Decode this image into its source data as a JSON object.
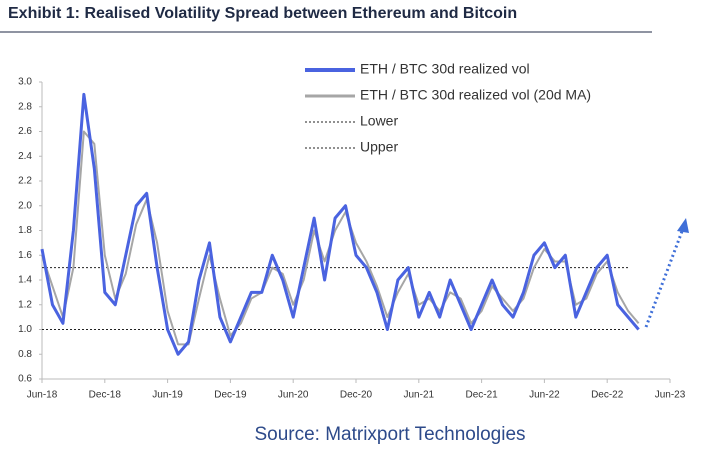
{
  "chart_data": {
    "type": "line",
    "title": "Exhibit 1: Realised Volatility Spread between Ethereum and Bitcoin",
    "source": "Source: Matrixport Technologies",
    "x": [
      "2018-06",
      "2018-07",
      "2018-08",
      "2018-09",
      "2018-10",
      "2018-11",
      "2018-12",
      "2019-01",
      "2019-02",
      "2019-03",
      "2019-04",
      "2019-05",
      "2019-06",
      "2019-07",
      "2019-08",
      "2019-09",
      "2019-10",
      "2019-11",
      "2019-12",
      "2020-01",
      "2020-02",
      "2020-03",
      "2020-04",
      "2020-05",
      "2020-06",
      "2020-07",
      "2020-08",
      "2020-09",
      "2020-10",
      "2020-11",
      "2020-12",
      "2021-01",
      "2021-02",
      "2021-03",
      "2021-04",
      "2021-05",
      "2021-06",
      "2021-07",
      "2021-08",
      "2021-09",
      "2021-10",
      "2021-11",
      "2021-12",
      "2022-01",
      "2022-02",
      "2022-03",
      "2022-04",
      "2022-05",
      "2022-06",
      "2022-07",
      "2022-08",
      "2022-09",
      "2022-10",
      "2022-11",
      "2022-12",
      "2023-01",
      "2023-02",
      "2023-03"
    ],
    "series": [
      {
        "name": "ETH / BTC 30d realized vol",
        "color": "#4a63e0",
        "width": 3,
        "values": [
          1.65,
          1.2,
          1.05,
          1.8,
          2.9,
          2.3,
          1.3,
          1.2,
          1.6,
          2.0,
          2.1,
          1.5,
          1.0,
          0.8,
          0.9,
          1.4,
          1.7,
          1.1,
          0.9,
          1.1,
          1.3,
          1.3,
          1.6,
          1.4,
          1.1,
          1.5,
          1.9,
          1.4,
          1.9,
          2.0,
          1.6,
          1.5,
          1.3,
          1.0,
          1.4,
          1.5,
          1.1,
          1.3,
          1.1,
          1.4,
          1.2,
          1.0,
          1.2,
          1.4,
          1.2,
          1.1,
          1.3,
          1.6,
          1.7,
          1.5,
          1.6,
          1.1,
          1.3,
          1.5,
          1.6,
          1.2,
          1.1,
          1.0
        ]
      },
      {
        "name": "ETH / BTC 30d realized vol (20d MA)",
        "color": "#a6a6a6",
        "width": 2,
        "values": [
          1.6,
          1.35,
          1.1,
          1.5,
          2.6,
          2.5,
          1.6,
          1.25,
          1.45,
          1.85,
          2.05,
          1.7,
          1.15,
          0.88,
          0.88,
          1.25,
          1.6,
          1.25,
          0.95,
          1.05,
          1.25,
          1.3,
          1.5,
          1.45,
          1.2,
          1.4,
          1.8,
          1.55,
          1.8,
          1.95,
          1.7,
          1.55,
          1.35,
          1.1,
          1.3,
          1.45,
          1.2,
          1.25,
          1.15,
          1.3,
          1.25,
          1.05,
          1.15,
          1.35,
          1.25,
          1.15,
          1.25,
          1.5,
          1.65,
          1.55,
          1.55,
          1.2,
          1.25,
          1.45,
          1.55,
          1.3,
          1.15,
          1.05
        ]
      }
    ],
    "reference_lines": [
      {
        "name": "Lower",
        "value": 1.0
      },
      {
        "name": "Upper",
        "value": 1.5
      }
    ],
    "xlim": [
      "2018-06",
      "2023-06"
    ],
    "xticks": [
      {
        "value": "2018-06",
        "label": "Jun-18"
      },
      {
        "value": "2018-12",
        "label": "Dec-18"
      },
      {
        "value": "2019-06",
        "label": "Jun-19"
      },
      {
        "value": "2019-12",
        "label": "Dec-19"
      },
      {
        "value": "2020-06",
        "label": "Jun-20"
      },
      {
        "value": "2020-12",
        "label": "Dec-20"
      },
      {
        "value": "2021-06",
        "label": "Jun-21"
      },
      {
        "value": "2021-12",
        "label": "Dec-21"
      },
      {
        "value": "2022-06",
        "label": "Jun-22"
      },
      {
        "value": "2022-12",
        "label": "Dec-22"
      },
      {
        "value": "2023-06",
        "label": "Jun-23"
      }
    ],
    "ylim": [
      0.6,
      3.0
    ],
    "yticks": [
      0.6,
      0.8,
      {
        "value": 1,
        "label": "1.0"
      },
      1.2,
      1.4,
      1.6,
      1.8,
      {
        "value": 2,
        "label": "2.0"
      },
      2.2,
      2.4,
      2.6,
      2.8,
      {
        "value": 3,
        "label": "3.0"
      }
    ],
    "grid": false
  }
}
